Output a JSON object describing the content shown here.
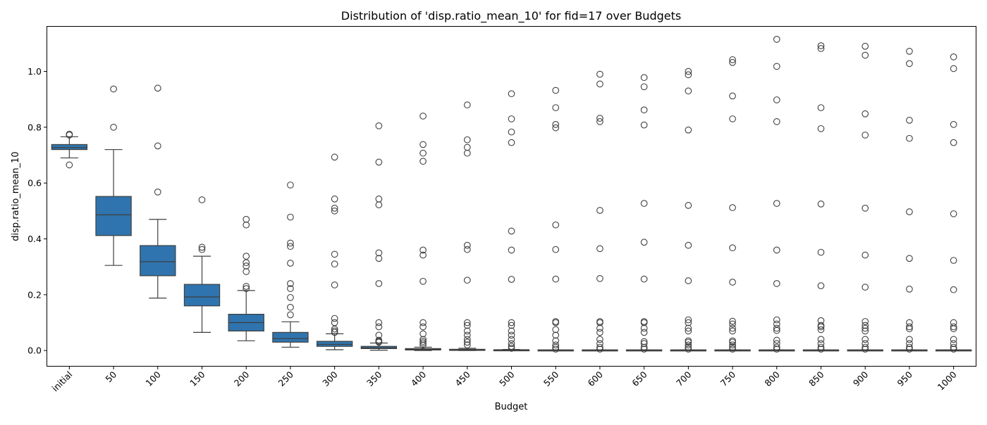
{
  "chart_data": {
    "type": "box",
    "title": "Distribution of 'disp.ratio_mean_10' for fid=17 over Budgets",
    "xlabel": "Budget",
    "ylabel": "disp.ratio_mean_10",
    "ylim": [
      -0.055,
      1.16
    ],
    "yticks": [
      "0.0",
      "0.2",
      "0.4",
      "0.6",
      "0.8",
      "1.0"
    ],
    "grid": false,
    "box_color": "#2f74ae",
    "categories": [
      "initial",
      "50",
      "100",
      "150",
      "200",
      "250",
      "300",
      "350",
      "400",
      "450",
      "500",
      "550",
      "600",
      "650",
      "700",
      "750",
      "800",
      "850",
      "900",
      "950",
      "1000"
    ],
    "boxes": [
      {
        "whislo": 0.69,
        "q1": 0.72,
        "med": 0.727,
        "q3": 0.738,
        "whishi": 0.766,
        "fliers": [
          0.665,
          0.772,
          0.775
        ]
      },
      {
        "whislo": 0.305,
        "q1": 0.412,
        "med": 0.486,
        "q3": 0.552,
        "whishi": 0.72,
        "fliers": [
          0.8,
          0.937
        ]
      },
      {
        "whislo": 0.188,
        "q1": 0.268,
        "med": 0.318,
        "q3": 0.376,
        "whishi": 0.47,
        "fliers": [
          0.568,
          0.733,
          0.94
        ]
      },
      {
        "whislo": 0.065,
        "q1": 0.16,
        "med": 0.192,
        "q3": 0.237,
        "whishi": 0.338,
        "fliers": [
          0.362,
          0.37,
          0.54
        ]
      },
      {
        "whislo": 0.035,
        "q1": 0.07,
        "med": 0.1,
        "q3": 0.13,
        "whishi": 0.215,
        "fliers": [
          0.222,
          0.23,
          0.283,
          0.303,
          0.315,
          0.338,
          0.45,
          0.47
        ]
      },
      {
        "whislo": 0.012,
        "q1": 0.03,
        "med": 0.043,
        "q3": 0.065,
        "whishi": 0.103,
        "fliers": [
          0.128,
          0.155,
          0.19,
          0.222,
          0.24,
          0.313,
          0.373,
          0.385,
          0.478,
          0.593
        ]
      },
      {
        "whislo": 0.003,
        "q1": 0.015,
        "med": 0.022,
        "q3": 0.033,
        "whishi": 0.06,
        "fliers": [
          0.065,
          0.07,
          0.077,
          0.1,
          0.115,
          0.235,
          0.31,
          0.345,
          0.5,
          0.51,
          0.543,
          0.693
        ]
      },
      {
        "whislo": 0.001,
        "q1": 0.007,
        "med": 0.01,
        "q3": 0.015,
        "whishi": 0.027,
        "fliers": [
          0.03,
          0.033,
          0.037,
          0.055,
          0.085,
          0.1,
          0.24,
          0.33,
          0.35,
          0.522,
          0.543,
          0.675,
          0.805
        ]
      },
      {
        "whislo": 0.0,
        "q1": 0.002,
        "med": 0.004,
        "q3": 0.007,
        "whishi": 0.012,
        "fliers": [
          0.02,
          0.027,
          0.033,
          0.04,
          0.06,
          0.085,
          0.1,
          0.248,
          0.342,
          0.36,
          0.678,
          0.707,
          0.738,
          0.84
        ]
      },
      {
        "whislo": 0.0,
        "q1": 0.001,
        "med": 0.002,
        "q3": 0.004,
        "whishi": 0.008,
        "fliers": [
          0.02,
          0.03,
          0.04,
          0.055,
          0.07,
          0.09,
          0.1,
          0.252,
          0.362,
          0.377,
          0.707,
          0.728,
          0.755,
          0.88
        ]
      },
      {
        "whislo": 0.0,
        "q1": 0.0,
        "med": 0.001,
        "q3": 0.002,
        "whishi": 0.004,
        "fliers": [
          0.008,
          0.015,
          0.025,
          0.04,
          0.055,
          0.07,
          0.09,
          0.1,
          0.255,
          0.36,
          0.428,
          0.745,
          0.783,
          0.83,
          0.92
        ]
      },
      {
        "whislo": 0.0,
        "q1": 0.0,
        "med": 0.0,
        "q3": 0.001,
        "whishi": 0.002,
        "fliers": [
          0.005,
          0.012,
          0.02,
          0.035,
          0.055,
          0.075,
          0.1,
          0.104,
          0.256,
          0.362,
          0.45,
          0.798,
          0.81,
          0.87,
          0.932
        ]
      },
      {
        "whislo": 0.0,
        "q1": 0.0,
        "med": 0.0,
        "q3": 0.001,
        "whishi": 0.002,
        "fliers": [
          0.005,
          0.012,
          0.025,
          0.04,
          0.065,
          0.08,
          0.1,
          0.104,
          0.258,
          0.365,
          0.502,
          0.82,
          0.832,
          0.955,
          0.99
        ]
      },
      {
        "whislo": 0.0,
        "q1": 0.0,
        "med": 0.0,
        "q3": 0.001,
        "whishi": 0.002,
        "fliers": [
          0.005,
          0.012,
          0.025,
          0.032,
          0.065,
          0.08,
          0.1,
          0.104,
          0.256,
          0.388,
          0.527,
          0.808,
          0.862,
          0.945,
          0.978
        ]
      },
      {
        "whislo": 0.0,
        "q1": 0.0,
        "med": 0.0,
        "q3": 0.001,
        "whishi": 0.002,
        "fliers": [
          0.005,
          0.012,
          0.02,
          0.03,
          0.035,
          0.07,
          0.08,
          0.1,
          0.11,
          0.25,
          0.377,
          0.52,
          0.79,
          0.93,
          0.988,
          1.0
        ]
      },
      {
        "whislo": 0.0,
        "q1": 0.0,
        "med": 0.0,
        "q3": 0.001,
        "whishi": 0.002,
        "fliers": [
          0.005,
          0.012,
          0.02,
          0.03,
          0.035,
          0.07,
          0.08,
          0.095,
          0.105,
          0.245,
          0.368,
          0.512,
          0.83,
          0.912,
          1.032,
          1.042
        ]
      },
      {
        "whislo": 0.0,
        "q1": 0.0,
        "med": 0.0,
        "q3": 0.001,
        "whishi": 0.002,
        "fliers": [
          0.005,
          0.012,
          0.025,
          0.037,
          0.072,
          0.08,
          0.095,
          0.11,
          0.24,
          0.36,
          0.527,
          0.82,
          0.898,
          1.018,
          1.115
        ]
      },
      {
        "whislo": 0.0,
        "q1": 0.0,
        "med": 0.0,
        "q3": 0.001,
        "whishi": 0.002,
        "fliers": [
          0.005,
          0.012,
          0.025,
          0.04,
          0.075,
          0.085,
          0.09,
          0.107,
          0.232,
          0.352,
          0.525,
          0.795,
          0.87,
          1.082,
          1.092
        ]
      },
      {
        "whislo": 0.0,
        "q1": 0.0,
        "med": 0.0,
        "q3": 0.001,
        "whishi": 0.002,
        "fliers": [
          0.005,
          0.012,
          0.025,
          0.04,
          0.07,
          0.08,
          0.09,
          0.104,
          0.227,
          0.342,
          0.51,
          0.772,
          0.848,
          1.058,
          1.09
        ]
      },
      {
        "whislo": 0.0,
        "q1": 0.0,
        "med": 0.0,
        "q3": 0.001,
        "whishi": 0.002,
        "fliers": [
          0.005,
          0.012,
          0.025,
          0.04,
          0.078,
          0.085,
          0.1,
          0.22,
          0.33,
          0.497,
          0.76,
          0.825,
          1.028,
          1.072
        ]
      },
      {
        "whislo": 0.0,
        "q1": 0.0,
        "med": 0.0,
        "q3": 0.001,
        "whishi": 0.002,
        "fliers": [
          0.005,
          0.012,
          0.025,
          0.04,
          0.078,
          0.085,
          0.1,
          0.218,
          0.323,
          0.49,
          0.745,
          0.81,
          1.01,
          1.052
        ]
      }
    ]
  }
}
